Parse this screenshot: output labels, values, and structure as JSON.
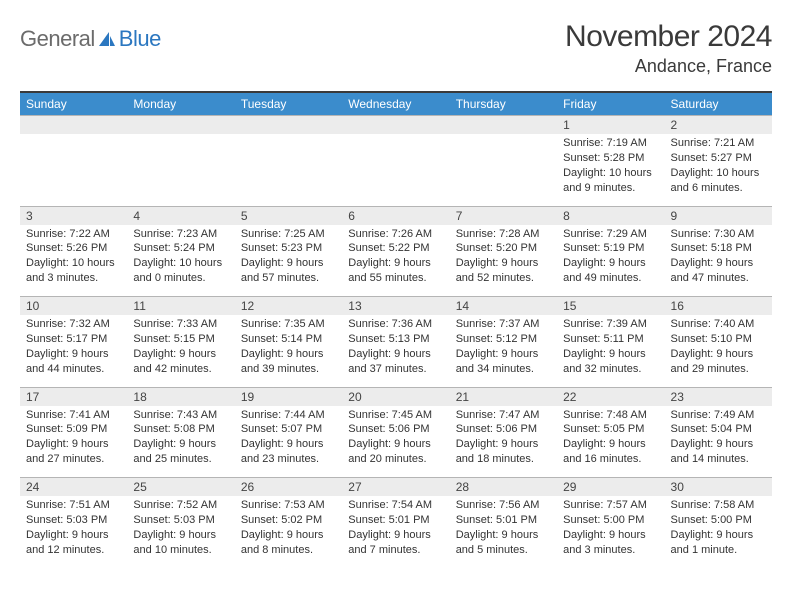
{
  "brand": {
    "general": "General",
    "blue": "Blue"
  },
  "title": "November 2024",
  "location": "Andance, France",
  "colors": {
    "header_bg": "#3b8ccc",
    "header_text": "#ffffff",
    "daynum_bg": "#ececec",
    "border": "#b5b5b5",
    "top_rule": "#3a3a3a",
    "brand_gray": "#6b6b6b",
    "brand_blue": "#2b77c0"
  },
  "dow": [
    "Sunday",
    "Monday",
    "Tuesday",
    "Wednesday",
    "Thursday",
    "Friday",
    "Saturday"
  ],
  "weeks": [
    {
      "nums": [
        "",
        "",
        "",
        "",
        "",
        "1",
        "2"
      ],
      "cells": [
        null,
        null,
        null,
        null,
        null,
        {
          "sr": "Sunrise: 7:19 AM",
          "ss": "Sunset: 5:28 PM",
          "dl": "Daylight: 10 hours and 9 minutes."
        },
        {
          "sr": "Sunrise: 7:21 AM",
          "ss": "Sunset: 5:27 PM",
          "dl": "Daylight: 10 hours and 6 minutes."
        }
      ]
    },
    {
      "nums": [
        "3",
        "4",
        "5",
        "6",
        "7",
        "8",
        "9"
      ],
      "cells": [
        {
          "sr": "Sunrise: 7:22 AM",
          "ss": "Sunset: 5:26 PM",
          "dl": "Daylight: 10 hours and 3 minutes."
        },
        {
          "sr": "Sunrise: 7:23 AM",
          "ss": "Sunset: 5:24 PM",
          "dl": "Daylight: 10 hours and 0 minutes."
        },
        {
          "sr": "Sunrise: 7:25 AM",
          "ss": "Sunset: 5:23 PM",
          "dl": "Daylight: 9 hours and 57 minutes."
        },
        {
          "sr": "Sunrise: 7:26 AM",
          "ss": "Sunset: 5:22 PM",
          "dl": "Daylight: 9 hours and 55 minutes."
        },
        {
          "sr": "Sunrise: 7:28 AM",
          "ss": "Sunset: 5:20 PM",
          "dl": "Daylight: 9 hours and 52 minutes."
        },
        {
          "sr": "Sunrise: 7:29 AM",
          "ss": "Sunset: 5:19 PM",
          "dl": "Daylight: 9 hours and 49 minutes."
        },
        {
          "sr": "Sunrise: 7:30 AM",
          "ss": "Sunset: 5:18 PM",
          "dl": "Daylight: 9 hours and 47 minutes."
        }
      ]
    },
    {
      "nums": [
        "10",
        "11",
        "12",
        "13",
        "14",
        "15",
        "16"
      ],
      "cells": [
        {
          "sr": "Sunrise: 7:32 AM",
          "ss": "Sunset: 5:17 PM",
          "dl": "Daylight: 9 hours and 44 minutes."
        },
        {
          "sr": "Sunrise: 7:33 AM",
          "ss": "Sunset: 5:15 PM",
          "dl": "Daylight: 9 hours and 42 minutes."
        },
        {
          "sr": "Sunrise: 7:35 AM",
          "ss": "Sunset: 5:14 PM",
          "dl": "Daylight: 9 hours and 39 minutes."
        },
        {
          "sr": "Sunrise: 7:36 AM",
          "ss": "Sunset: 5:13 PM",
          "dl": "Daylight: 9 hours and 37 minutes."
        },
        {
          "sr": "Sunrise: 7:37 AM",
          "ss": "Sunset: 5:12 PM",
          "dl": "Daylight: 9 hours and 34 minutes."
        },
        {
          "sr": "Sunrise: 7:39 AM",
          "ss": "Sunset: 5:11 PM",
          "dl": "Daylight: 9 hours and 32 minutes."
        },
        {
          "sr": "Sunrise: 7:40 AM",
          "ss": "Sunset: 5:10 PM",
          "dl": "Daylight: 9 hours and 29 minutes."
        }
      ]
    },
    {
      "nums": [
        "17",
        "18",
        "19",
        "20",
        "21",
        "22",
        "23"
      ],
      "cells": [
        {
          "sr": "Sunrise: 7:41 AM",
          "ss": "Sunset: 5:09 PM",
          "dl": "Daylight: 9 hours and 27 minutes."
        },
        {
          "sr": "Sunrise: 7:43 AM",
          "ss": "Sunset: 5:08 PM",
          "dl": "Daylight: 9 hours and 25 minutes."
        },
        {
          "sr": "Sunrise: 7:44 AM",
          "ss": "Sunset: 5:07 PM",
          "dl": "Daylight: 9 hours and 23 minutes."
        },
        {
          "sr": "Sunrise: 7:45 AM",
          "ss": "Sunset: 5:06 PM",
          "dl": "Daylight: 9 hours and 20 minutes."
        },
        {
          "sr": "Sunrise: 7:47 AM",
          "ss": "Sunset: 5:06 PM",
          "dl": "Daylight: 9 hours and 18 minutes."
        },
        {
          "sr": "Sunrise: 7:48 AM",
          "ss": "Sunset: 5:05 PM",
          "dl": "Daylight: 9 hours and 16 minutes."
        },
        {
          "sr": "Sunrise: 7:49 AM",
          "ss": "Sunset: 5:04 PM",
          "dl": "Daylight: 9 hours and 14 minutes."
        }
      ]
    },
    {
      "nums": [
        "24",
        "25",
        "26",
        "27",
        "28",
        "29",
        "30"
      ],
      "cells": [
        {
          "sr": "Sunrise: 7:51 AM",
          "ss": "Sunset: 5:03 PM",
          "dl": "Daylight: 9 hours and 12 minutes."
        },
        {
          "sr": "Sunrise: 7:52 AM",
          "ss": "Sunset: 5:03 PM",
          "dl": "Daylight: 9 hours and 10 minutes."
        },
        {
          "sr": "Sunrise: 7:53 AM",
          "ss": "Sunset: 5:02 PM",
          "dl": "Daylight: 9 hours and 8 minutes."
        },
        {
          "sr": "Sunrise: 7:54 AM",
          "ss": "Sunset: 5:01 PM",
          "dl": "Daylight: 9 hours and 7 minutes."
        },
        {
          "sr": "Sunrise: 7:56 AM",
          "ss": "Sunset: 5:01 PM",
          "dl": "Daylight: 9 hours and 5 minutes."
        },
        {
          "sr": "Sunrise: 7:57 AM",
          "ss": "Sunset: 5:00 PM",
          "dl": "Daylight: 9 hours and 3 minutes."
        },
        {
          "sr": "Sunrise: 7:58 AM",
          "ss": "Sunset: 5:00 PM",
          "dl": "Daylight: 9 hours and 1 minute."
        }
      ]
    }
  ]
}
